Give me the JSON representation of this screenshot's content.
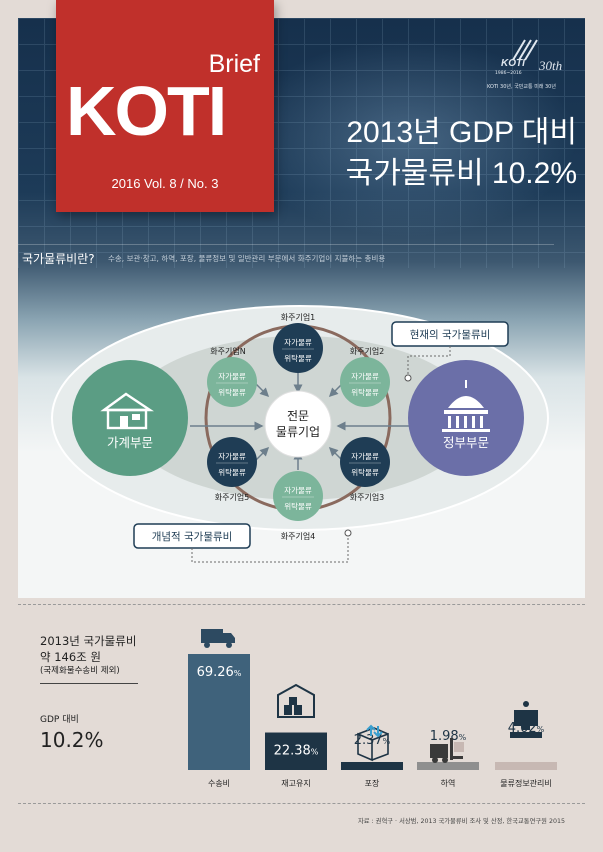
{
  "masthead": {
    "brief": "Brief",
    "name": "KOTI",
    "issue": "2016  Vol. 8 / No. 3"
  },
  "logo": {
    "wordmark": "KOTI",
    "anniversary": "30th",
    "years": "1986~2016",
    "tagline": "KOTI 30년, 국민교통 미래 30년"
  },
  "title": {
    "line1": "2013년 GDP 대비",
    "line2": "국가물류비 10.2%"
  },
  "definition": {
    "label": "국가물류비란?",
    "text": "수송, 보관·창고, 하역, 포장, 물류정보 및 일반관리 부문에서 화주기업이 지불하는 총비용"
  },
  "diagram": {
    "household": "가계부문",
    "government": "정부부문",
    "center_line1": "전문",
    "center_line2": "물류기업",
    "current_callout": "현재의 국가물류비",
    "concept_callout": "개념적 국가물류비",
    "self_logistics": "자가물류",
    "consigned_logistics": "위탁물류",
    "shippers": [
      "화주기업1",
      "화주기업2",
      "화주기업3",
      "화주기업4",
      "화주기업5",
      "화주기업N"
    ],
    "colors": {
      "dark": "#1f3d55",
      "green": "#7cb59b",
      "household": "#5b9d84",
      "government": "#6b6fa8"
    }
  },
  "summary": {
    "line1": "2013년 국가물류비",
    "line2": "약 146조 원",
    "line3": "(국제화물수송비 제외)",
    "gdp_label": "GDP 대비",
    "gdp_value": "10.2%"
  },
  "chart_data": {
    "type": "bar",
    "categories": [
      "수송비",
      "재고유지",
      "포장",
      "하역",
      "물류정보관리비"
    ],
    "values": [
      69.26,
      22.38,
      2.37,
      1.98,
      4.02
    ],
    "value_labels": [
      "69.26",
      "22.38",
      "2.37",
      "1.98",
      "4.02"
    ],
    "unit": "%",
    "icons": [
      "truck-icon",
      "warehouse-icon",
      "package-icon",
      "forklift-icon",
      "computer-icon"
    ],
    "colors": [
      "#3f627b",
      "#1e3445",
      "#1e3445",
      "#8f8f8f",
      "#c7b8b3"
    ]
  },
  "source": "자료 : 권혁구 · 서상범, 2013 국가물류비 조사 및 산정, 한국교통연구원 2015"
}
